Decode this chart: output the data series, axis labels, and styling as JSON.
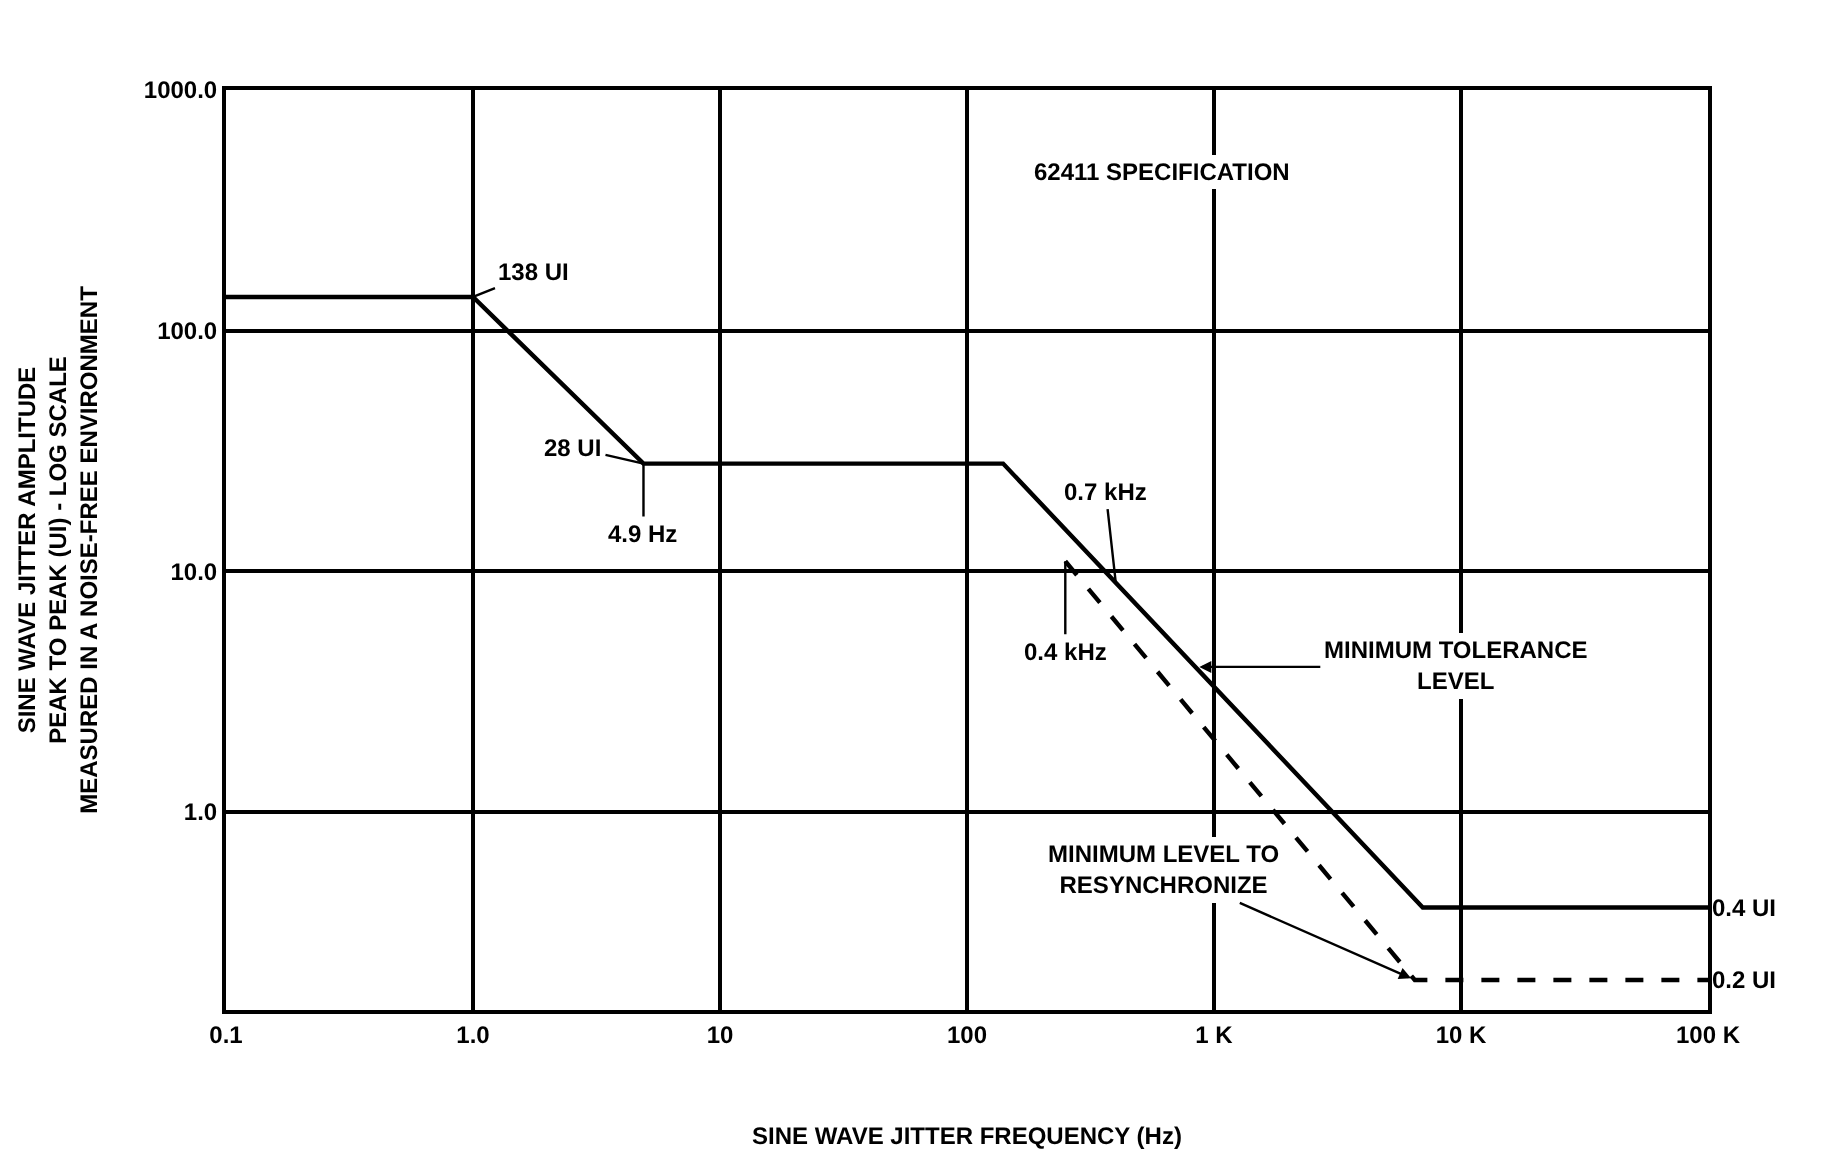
{
  "chart_data": {
    "type": "line",
    "xlabel": "SINE WAVE JITTER FREQUENCY (Hz)",
    "ylabel": "SINE WAVE JITTER AMPLITUDE\nPEAK TO PEAK (UI) - LOG SCALE\nMEASURED IN A NOISE-FREE ENVIRONMENT",
    "log": "xy",
    "grid": true,
    "marker": "none",
    "xlim": [
      0.1,
      100000
    ],
    "ylim": [
      0.15,
      1000
    ],
    "xticks": [
      0.1,
      {
        "value": 1,
        "label": "1.0"
      },
      10,
      100,
      {
        "value": 1000,
        "label": "1 K"
      },
      {
        "value": 10000,
        "label": "10 K"
      },
      {
        "value": 100000,
        "label": "100 K"
      }
    ],
    "yticks": [
      {
        "value": 1,
        "label": "1.0"
      },
      {
        "value": 10,
        "label": "10.0"
      },
      {
        "value": 100,
        "label": "100.0"
      },
      {
        "value": 1000,
        "label": "1000.0"
      }
    ],
    "series": [
      {
        "color": "#000000",
        "line_style": "solid",
        "x": [
          0.1,
          1,
          4.9,
          140,
          7000,
          100000
        ],
        "values": [
          138,
          138,
          28,
          28,
          0.4,
          0.4
        ]
      },
      {
        "color": "#000000",
        "line_style": "dashed",
        "x": [
          250,
          6500,
          100000
        ],
        "values": [
          11,
          0.2,
          0.2
        ]
      }
    ],
    "annotations": [
      "62411 SPECIFICATION",
      {
        "text": "138 UI",
        "x": 1,
        "y": 138
      },
      {
        "text": "28 UI",
        "x": 4.9,
        "y": 28
      },
      {
        "text": "4.9 Hz",
        "x": 4.9,
        "y": 28
      },
      {
        "text": "0.7 kHz",
        "x": 400,
        "y": 9
      },
      {
        "text": "0.4 kHz",
        "x": 250,
        "y": 11
      },
      {
        "text": "MINIMUM TOLERANCE LEVEL",
        "x": 840,
        "y": 4
      },
      {
        "text": "MINIMUM LEVEL TO RESYNCHRONIZE",
        "x": 6500,
        "y": 0.2
      },
      {
        "text": "0.4 UI",
        "x": 100000,
        "y": 0.4
      },
      {
        "text": "0.2 UI",
        "x": 100000,
        "y": 0.2
      }
    ]
  }
}
